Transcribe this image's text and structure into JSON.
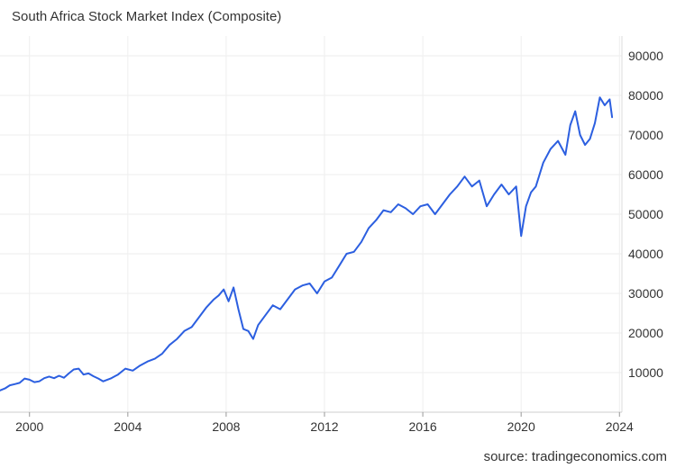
{
  "title": "South Africa Stock Market Index (Composite)",
  "source": "source: tradingeconomics.com",
  "chart_data": {
    "type": "line",
    "title": "South Africa Stock Market Index (Composite)",
    "xlabel": "",
    "ylabel": "",
    "xlim": [
      1998.8,
      2024.1
    ],
    "ylim": [
      0,
      95000
    ],
    "grid": true,
    "legend": "none",
    "line_color": "#2c5fe0",
    "x_ticks": [
      "2000",
      "2004",
      "2008",
      "2012",
      "2016",
      "2020",
      "2024"
    ],
    "y_ticks": [
      "10000",
      "20000",
      "30000",
      "40000",
      "50000",
      "60000",
      "70000",
      "80000",
      "90000"
    ],
    "series": [
      {
        "x": [
          1998.8,
          1999.0,
          1999.2,
          1999.4,
          1999.6,
          1999.8,
          2000.0,
          2000.2,
          2000.4,
          2000.6,
          2000.8,
          2001.0,
          2001.2,
          2001.4,
          2001.6,
          2001.8,
          2002.0,
          2002.2,
          2002.4,
          2002.6,
          2002.8,
          2003.0,
          2003.3,
          2003.6,
          2003.9,
          2004.2,
          2004.5,
          2004.8,
          2005.1,
          2005.4,
          2005.7,
          2006.0,
          2006.3,
          2006.6,
          2006.9,
          2007.2,
          2007.5,
          2007.7,
          2007.9,
          2008.1,
          2008.3,
          2008.5,
          2008.7,
          2008.9,
          2009.1,
          2009.3,
          2009.6,
          2009.9,
          2010.2,
          2010.5,
          2010.8,
          2011.1,
          2011.4,
          2011.7,
          2012.0,
          2012.3,
          2012.6,
          2012.9,
          2013.2,
          2013.5,
          2013.8,
          2014.1,
          2014.4,
          2014.7,
          2015.0,
          2015.3,
          2015.6,
          2015.9,
          2016.2,
          2016.5,
          2016.8,
          2017.1,
          2017.4,
          2017.7,
          2018.0,
          2018.3,
          2018.6,
          2018.9,
          2019.2,
          2019.5,
          2019.8,
          2020.0,
          2020.2,
          2020.4,
          2020.6,
          2020.9,
          2021.2,
          2021.5,
          2021.8,
          2022.0,
          2022.2,
          2022.4,
          2022.6,
          2022.8,
          2023.0,
          2023.2,
          2023.4,
          2023.6,
          2023.7
        ],
        "y": [
          5500,
          6000,
          6800,
          7100,
          7400,
          8500,
          8200,
          7600,
          7800,
          8600,
          9000,
          8600,
          9200,
          8700,
          9800,
          10800,
          11000,
          9500,
          9800,
          9100,
          8500,
          7800,
          8500,
          9500,
          11000,
          10500,
          11800,
          12800,
          13500,
          14800,
          17000,
          18500,
          20500,
          21500,
          24000,
          26500,
          28500,
          29500,
          31000,
          28000,
          31500,
          26000,
          21000,
          20500,
          18500,
          22000,
          24500,
          27000,
          26000,
          28500,
          31000,
          32000,
          32500,
          30000,
          33000,
          34000,
          37000,
          40000,
          40500,
          43000,
          46500,
          48500,
          51000,
          50500,
          52500,
          51500,
          50000,
          52000,
          52500,
          50000,
          52500,
          55000,
          57000,
          59500,
          57000,
          58500,
          52000,
          55000,
          57500,
          55000,
          57000,
          44500,
          52000,
          55500,
          57000,
          63000,
          66500,
          68500,
          65000,
          72500,
          76000,
          70000,
          67500,
          69000,
          73000,
          79500,
          77500,
          79000,
          74500
        ]
      }
    ]
  }
}
